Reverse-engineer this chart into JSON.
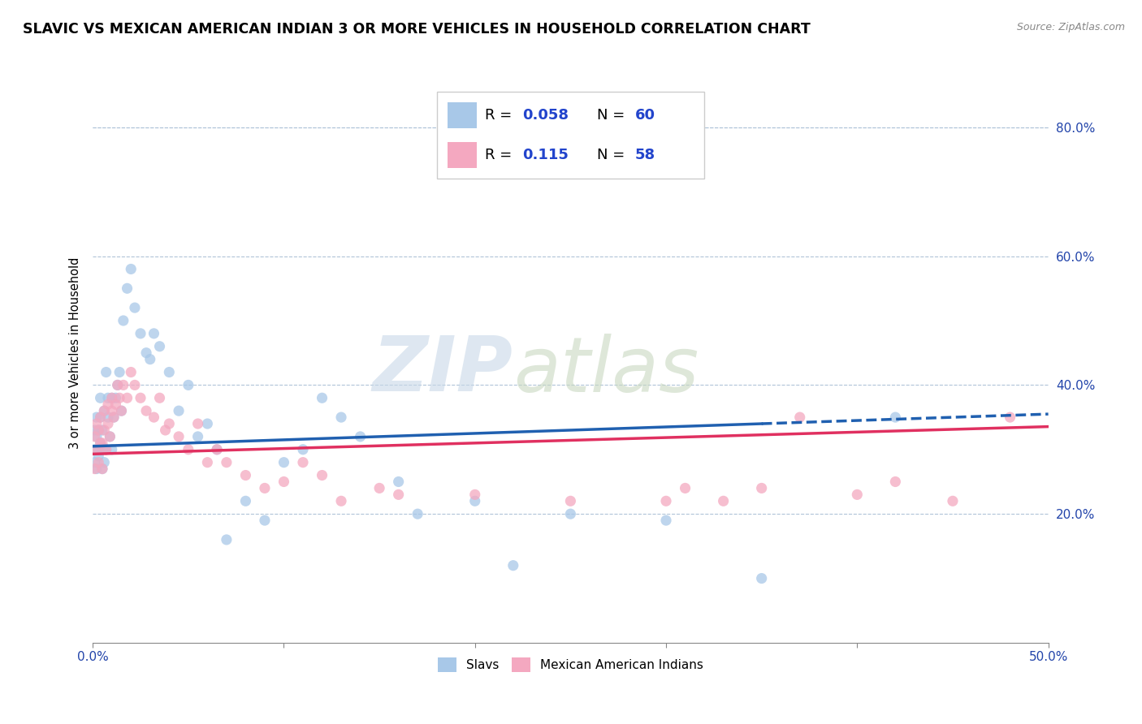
{
  "title": "SLAVIC VS MEXICAN AMERICAN INDIAN 3 OR MORE VEHICLES IN HOUSEHOLD CORRELATION CHART",
  "source": "Source: ZipAtlas.com",
  "ylabel": "3 or more Vehicles in Household",
  "legend1_label": "Slavs",
  "legend2_label": "Mexican American Indians",
  "r1": 0.058,
  "n1": 60,
  "r2": 0.115,
  "n2": 58,
  "blue_color": "#a8c8e8",
  "pink_color": "#f4a8c0",
  "blue_line_color": "#2060b0",
  "pink_line_color": "#e03060",
  "xlim": [
    0.0,
    0.5
  ],
  "ylim": [
    0.0,
    0.9
  ],
  "slavs_x": [
    0.001,
    0.001,
    0.001,
    0.002,
    0.002,
    0.002,
    0.003,
    0.003,
    0.003,
    0.004,
    0.004,
    0.004,
    0.005,
    0.005,
    0.005,
    0.006,
    0.006,
    0.007,
    0.007,
    0.008,
    0.008,
    0.009,
    0.01,
    0.01,
    0.011,
    0.012,
    0.013,
    0.014,
    0.015,
    0.016,
    0.018,
    0.02,
    0.022,
    0.025,
    0.028,
    0.03,
    0.032,
    0.035,
    0.04,
    0.045,
    0.05,
    0.055,
    0.06,
    0.065,
    0.07,
    0.08,
    0.09,
    0.1,
    0.11,
    0.12,
    0.13,
    0.14,
    0.16,
    0.17,
    0.2,
    0.22,
    0.25,
    0.3,
    0.35,
    0.42
  ],
  "slavs_y": [
    0.28,
    0.3,
    0.33,
    0.27,
    0.32,
    0.35,
    0.3,
    0.33,
    0.29,
    0.31,
    0.35,
    0.38,
    0.27,
    0.3,
    0.33,
    0.28,
    0.36,
    0.3,
    0.42,
    0.35,
    0.38,
    0.32,
    0.3,
    0.38,
    0.35,
    0.38,
    0.4,
    0.42,
    0.36,
    0.5,
    0.55,
    0.58,
    0.52,
    0.48,
    0.45,
    0.44,
    0.48,
    0.46,
    0.42,
    0.36,
    0.4,
    0.32,
    0.34,
    0.3,
    0.16,
    0.22,
    0.19,
    0.28,
    0.3,
    0.38,
    0.35,
    0.32,
    0.25,
    0.2,
    0.22,
    0.12,
    0.2,
    0.19,
    0.1,
    0.35
  ],
  "mexican_x": [
    0.001,
    0.001,
    0.002,
    0.002,
    0.003,
    0.003,
    0.004,
    0.004,
    0.005,
    0.005,
    0.006,
    0.006,
    0.007,
    0.008,
    0.008,
    0.009,
    0.01,
    0.01,
    0.011,
    0.012,
    0.013,
    0.014,
    0.015,
    0.016,
    0.018,
    0.02,
    0.022,
    0.025,
    0.028,
    0.032,
    0.035,
    0.038,
    0.04,
    0.045,
    0.05,
    0.055,
    0.06,
    0.065,
    0.07,
    0.08,
    0.09,
    0.1,
    0.11,
    0.12,
    0.13,
    0.15,
    0.16,
    0.2,
    0.25,
    0.3,
    0.31,
    0.33,
    0.35,
    0.37,
    0.4,
    0.42,
    0.45,
    0.48
  ],
  "mexican_y": [
    0.27,
    0.32,
    0.3,
    0.34,
    0.28,
    0.33,
    0.31,
    0.35,
    0.27,
    0.31,
    0.36,
    0.33,
    0.3,
    0.34,
    0.37,
    0.32,
    0.36,
    0.38,
    0.35,
    0.37,
    0.4,
    0.38,
    0.36,
    0.4,
    0.38,
    0.42,
    0.4,
    0.38,
    0.36,
    0.35,
    0.38,
    0.33,
    0.34,
    0.32,
    0.3,
    0.34,
    0.28,
    0.3,
    0.28,
    0.26,
    0.24,
    0.25,
    0.28,
    0.26,
    0.22,
    0.24,
    0.23,
    0.23,
    0.22,
    0.22,
    0.24,
    0.22,
    0.24,
    0.35,
    0.23,
    0.25,
    0.22,
    0.35
  ]
}
